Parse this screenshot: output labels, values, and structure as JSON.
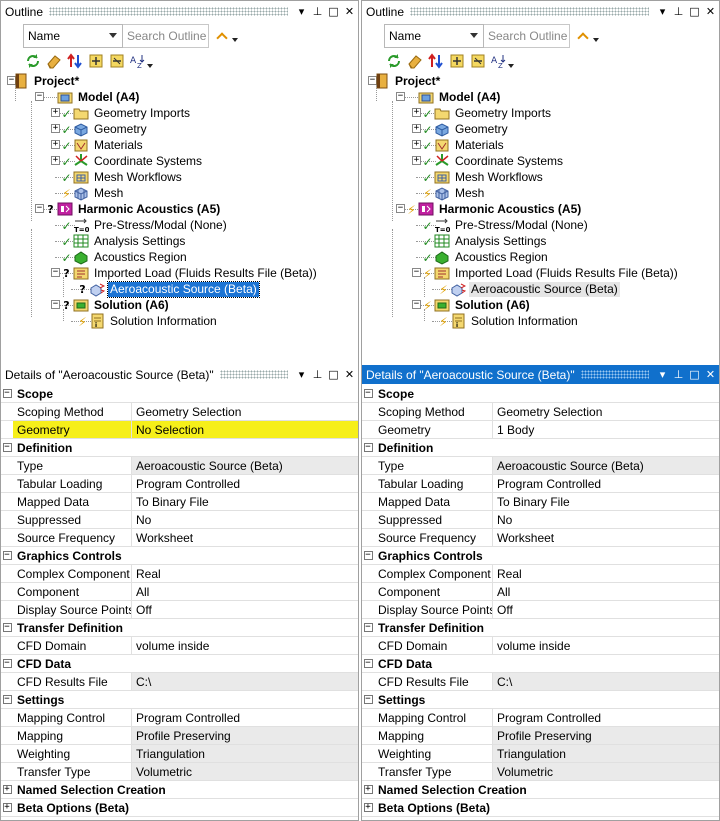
{
  "left": {
    "outline_title": "Outline",
    "name_combo": "Name",
    "search_placeholder": "Search Outline",
    "tree": {
      "project": "Project*",
      "model": "Model (A4)",
      "geometry_imports": "Geometry Imports",
      "geometry": "Geometry",
      "materials": "Materials",
      "coordinate_systems": "Coordinate Systems",
      "mesh_workflows": "Mesh Workflows",
      "mesh": "Mesh",
      "harmonic_acoustics": "Harmonic Acoustics (A5)",
      "prestress": "Pre-Stress/Modal (None)",
      "analysis_settings": "Analysis Settings",
      "acoustics_region": "Acoustics Region",
      "imported_load": "Imported Load (Fluids Results File (Beta))",
      "aeroacoustic_source": "Aeroacoustic Source (Beta)",
      "solution": "Solution (A6)",
      "solution_information": "Solution Information"
    },
    "details_title": "Details of \"Aeroacoustic Source (Beta)\"",
    "details": {
      "scope": "Scope",
      "scoping_method": {
        "name": "Scoping Method",
        "value": "Geometry Selection"
      },
      "geometry": {
        "name": "Geometry",
        "value": "No Selection"
      },
      "definition": "Definition",
      "type": {
        "name": "Type",
        "value": "Aeroacoustic Source (Beta)"
      },
      "tabular_loading": {
        "name": "Tabular Loading",
        "value": "Program Controlled"
      },
      "mapped_data": {
        "name": "Mapped Data",
        "value": "To Binary File"
      },
      "suppressed": {
        "name": "Suppressed",
        "value": "No"
      },
      "source_frequency": {
        "name": "Source Frequency",
        "value": "Worksheet"
      },
      "graphics_controls": "Graphics Controls",
      "complex_component": {
        "name": "Complex Component",
        "value": "Real"
      },
      "component": {
        "name": "Component",
        "value": "All"
      },
      "display_source_points": {
        "name": "Display Source Points",
        "value": "Off"
      },
      "transfer_definition": "Transfer Definition",
      "cfd_domain": {
        "name": "CFD Domain",
        "value": "volume inside"
      },
      "cfd_data": "CFD Data",
      "cfd_results_file": {
        "name": "CFD Results File",
        "value": "C:\\"
      },
      "settings": "Settings",
      "mapping_control": {
        "name": "Mapping Control",
        "value": "Program Controlled"
      },
      "mapping": {
        "name": "Mapping",
        "value": "Profile Preserving"
      },
      "weighting": {
        "name": "Weighting",
        "value": "Triangulation"
      },
      "transfer_type": {
        "name": "Transfer Type",
        "value": "Volumetric"
      },
      "named_selection_creation": "Named Selection Creation",
      "beta_options": "Beta Options (Beta)"
    }
  },
  "right": {
    "outline_title": "Outline",
    "name_combo": "Name",
    "search_placeholder": "Search Outline",
    "tree": {
      "project": "Project*",
      "model": "Model (A4)",
      "geometry_imports": "Geometry Imports",
      "geometry": "Geometry",
      "materials": "Materials",
      "coordinate_systems": "Coordinate Systems",
      "mesh_workflows": "Mesh Workflows",
      "mesh": "Mesh",
      "harmonic_acoustics": "Harmonic Acoustics (A5)",
      "prestress": "Pre-Stress/Modal (None)",
      "analysis_settings": "Analysis Settings",
      "acoustics_region": "Acoustics Region",
      "imported_load": "Imported Load (Fluids Results File (Beta))",
      "aeroacoustic_source": "Aeroacoustic Source (Beta)",
      "solution": "Solution (A6)",
      "solution_information": "Solution Information"
    },
    "details_title": "Details of \"Aeroacoustic Source (Beta)\"",
    "details": {
      "scope": "Scope",
      "scoping_method": {
        "name": "Scoping Method",
        "value": "Geometry Selection"
      },
      "geometry": {
        "name": "Geometry",
        "value": "1 Body"
      },
      "definition": "Definition",
      "type": {
        "name": "Type",
        "value": "Aeroacoustic Source (Beta)"
      },
      "tabular_loading": {
        "name": "Tabular Loading",
        "value": "Program Controlled"
      },
      "mapped_data": {
        "name": "Mapped Data",
        "value": "To Binary File"
      },
      "suppressed": {
        "name": "Suppressed",
        "value": "No"
      },
      "source_frequency": {
        "name": "Source Frequency",
        "value": "Worksheet"
      },
      "graphics_controls": "Graphics Controls",
      "complex_component": {
        "name": "Complex Component",
        "value": "Real"
      },
      "component": {
        "name": "Component",
        "value": "All"
      },
      "display_source_points": {
        "name": "Display Source Points",
        "value": "Off"
      },
      "transfer_definition": "Transfer Definition",
      "cfd_domain": {
        "name": "CFD Domain",
        "value": "volume inside"
      },
      "cfd_data": "CFD Data",
      "cfd_results_file": {
        "name": "CFD Results File",
        "value": "C:\\"
      },
      "settings": "Settings",
      "mapping_control": {
        "name": "Mapping Control",
        "value": "Program Controlled"
      },
      "mapping": {
        "name": "Mapping",
        "value": "Profile Preserving"
      },
      "weighting": {
        "name": "Weighting",
        "value": "Triangulation"
      },
      "transfer_type": {
        "name": "Transfer Type",
        "value": "Volumetric"
      },
      "named_selection_creation": "Named Selection Creation",
      "beta_options": "Beta Options (Beta)"
    }
  },
  "window_buttons": {
    "dropdown": "▾",
    "pin": "⊥",
    "maximize": "□",
    "close": "✕"
  },
  "colors": {
    "active_title": "#1070cc",
    "selection": "#1c74d4",
    "highlight": "#f6ef1a",
    "check": "#208a20",
    "lightning": "#e0a000"
  }
}
